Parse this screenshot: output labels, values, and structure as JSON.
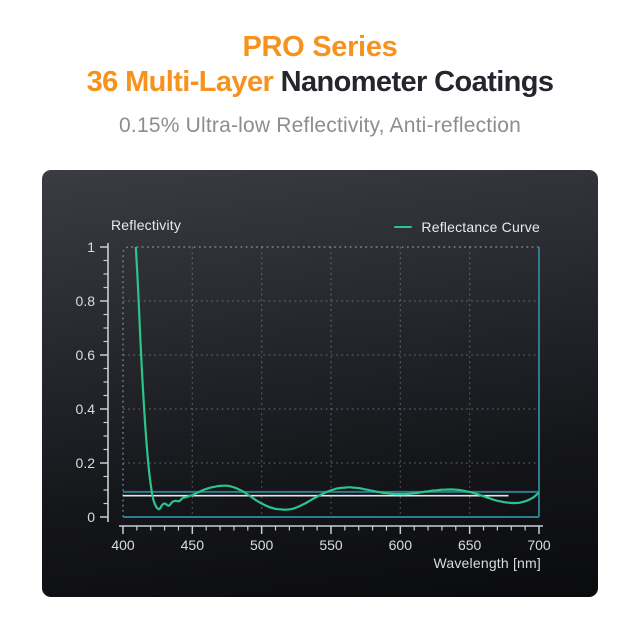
{
  "page": {
    "background": "#FFFFFF"
  },
  "header": {
    "line1": "PRO Series",
    "line2_highlight": "36 Multi-Layer",
    "line2_rest": " Nanometer Coatings",
    "subtitle": "0.15% Ultra-low Reflectivity, Anti-reflection",
    "accent_color": "#F6921E",
    "title_color": "#24252D",
    "subtitle_color": "#8D8D8D"
  },
  "chart_data": {
    "type": "line",
    "title": "Reflectivity",
    "legend_label": "Reflectance Curve",
    "legend_position": "top-right",
    "xlabel": "Wavelength [nm]",
    "ylabel": "Reflectivity",
    "xlim": [
      400,
      700
    ],
    "ylim": [
      0,
      1
    ],
    "x_ticks": [
      400,
      450,
      500,
      550,
      600,
      650,
      700
    ],
    "y_ticks": [
      0,
      0.2,
      0.4,
      0.6,
      0.8,
      1
    ],
    "x_minor_step": 10,
    "y_minor_step": 0.05,
    "grid": "dotted",
    "panel_colors": {
      "top": "#3A3C42",
      "bottom": "#0A0B0E"
    },
    "colors": {
      "curve": "#2AC58B",
      "reference_teal": "#2E7A8F",
      "reference_white": "#E4E6E7",
      "axis": "#C9CDD1",
      "tick_text": "#D9DCDE",
      "grid_dots": "rgba(195,200,205,0.38)",
      "border_dots": "rgba(125,168,182,0.75)"
    },
    "reference_lines": [
      {
        "name": "upper-teal-line",
        "y": 0.093,
        "x_from": 400,
        "x_to": 700,
        "color_key": "reference_teal",
        "width": 2
      },
      {
        "name": "white-mean-line",
        "y": 0.079,
        "x_from": 400,
        "x_to": 678,
        "color_key": "reference_white",
        "width": 1.6
      }
    ],
    "series": [
      {
        "name": "Reflectance Curve",
        "color": "#2AC58B",
        "points": [
          [
            409,
            1.02
          ],
          [
            410,
            0.93
          ],
          [
            411,
            0.83
          ],
          [
            412,
            0.72
          ],
          [
            413,
            0.61
          ],
          [
            414,
            0.51
          ],
          [
            415,
            0.42
          ],
          [
            416,
            0.34
          ],
          [
            417,
            0.27
          ],
          [
            418,
            0.21
          ],
          [
            419,
            0.16
          ],
          [
            420,
            0.12
          ],
          [
            421,
            0.085
          ],
          [
            422,
            0.062
          ],
          [
            423,
            0.047
          ],
          [
            424,
            0.037
          ],
          [
            425,
            0.031
          ],
          [
            426,
            0.029
          ],
          [
            427,
            0.033
          ],
          [
            428,
            0.043
          ],
          [
            429,
            0.048
          ],
          [
            430,
            0.05
          ],
          [
            431,
            0.048
          ],
          [
            432,
            0.043
          ],
          [
            433,
            0.041
          ],
          [
            434,
            0.046
          ],
          [
            435,
            0.053
          ],
          [
            436,
            0.057
          ],
          [
            437,
            0.059
          ],
          [
            438,
            0.06
          ],
          [
            439,
            0.059
          ],
          [
            440,
            0.058
          ],
          [
            441,
            0.06
          ],
          [
            442,
            0.065
          ],
          [
            443,
            0.07
          ],
          [
            444,
            0.072
          ],
          [
            445,
            0.073
          ],
          [
            446,
            0.074
          ],
          [
            447,
            0.076
          ],
          [
            448,
            0.078
          ],
          [
            450,
            0.081
          ],
          [
            452,
            0.086
          ],
          [
            454,
            0.091
          ],
          [
            456,
            0.096
          ],
          [
            458,
            0.1
          ],
          [
            460,
            0.104
          ],
          [
            462,
            0.107
          ],
          [
            464,
            0.11
          ],
          [
            466,
            0.112
          ],
          [
            468,
            0.114
          ],
          [
            470,
            0.115
          ],
          [
            472,
            0.116
          ],
          [
            474,
            0.116
          ],
          [
            476,
            0.115
          ],
          [
            478,
            0.113
          ],
          [
            480,
            0.11
          ],
          [
            482,
            0.106
          ],
          [
            484,
            0.101
          ],
          [
            486,
            0.096
          ],
          [
            488,
            0.09
          ],
          [
            490,
            0.083
          ],
          [
            492,
            0.076
          ],
          [
            494,
            0.069
          ],
          [
            496,
            0.062
          ],
          [
            498,
            0.056
          ],
          [
            500,
            0.05
          ],
          [
            502,
            0.045
          ],
          [
            504,
            0.04
          ],
          [
            506,
            0.036
          ],
          [
            508,
            0.033
          ],
          [
            510,
            0.03
          ],
          [
            512,
            0.029
          ],
          [
            514,
            0.028
          ],
          [
            516,
            0.027
          ],
          [
            518,
            0.027
          ],
          [
            520,
            0.028
          ],
          [
            522,
            0.03
          ],
          [
            524,
            0.033
          ],
          [
            526,
            0.037
          ],
          [
            528,
            0.042
          ],
          [
            530,
            0.047
          ],
          [
            532,
            0.052
          ],
          [
            534,
            0.058
          ],
          [
            536,
            0.064
          ],
          [
            538,
            0.07
          ],
          [
            540,
            0.075
          ],
          [
            542,
            0.081
          ],
          [
            544,
            0.086
          ],
          [
            546,
            0.091
          ],
          [
            548,
            0.095
          ],
          [
            550,
            0.099
          ],
          [
            552,
            0.102
          ],
          [
            554,
            0.105
          ],
          [
            556,
            0.107
          ],
          [
            558,
            0.108
          ],
          [
            560,
            0.109
          ],
          [
            562,
            0.11
          ],
          [
            564,
            0.11
          ],
          [
            566,
            0.109
          ],
          [
            568,
            0.108
          ],
          [
            570,
            0.107
          ],
          [
            572,
            0.105
          ],
          [
            574,
            0.103
          ],
          [
            576,
            0.101
          ],
          [
            578,
            0.099
          ],
          [
            580,
            0.097
          ],
          [
            582,
            0.095
          ],
          [
            584,
            0.093
          ],
          [
            586,
            0.091
          ],
          [
            588,
            0.089
          ],
          [
            590,
            0.088
          ],
          [
            592,
            0.087
          ],
          [
            594,
            0.086
          ],
          [
            596,
            0.085
          ],
          [
            598,
            0.085
          ],
          [
            600,
            0.085
          ],
          [
            602,
            0.085
          ],
          [
            604,
            0.085
          ],
          [
            606,
            0.086
          ],
          [
            608,
            0.087
          ],
          [
            610,
            0.088
          ],
          [
            612,
            0.089
          ],
          [
            614,
            0.091
          ],
          [
            616,
            0.092
          ],
          [
            618,
            0.094
          ],
          [
            620,
            0.095
          ],
          [
            622,
            0.097
          ],
          [
            624,
            0.098
          ],
          [
            626,
            0.099
          ],
          [
            628,
            0.1
          ],
          [
            630,
            0.101
          ],
          [
            632,
            0.101
          ],
          [
            634,
            0.102
          ],
          [
            636,
            0.102
          ],
          [
            638,
            0.102
          ],
          [
            640,
            0.101
          ],
          [
            642,
            0.1
          ],
          [
            644,
            0.099
          ],
          [
            646,
            0.097
          ],
          [
            648,
            0.095
          ],
          [
            650,
            0.093
          ],
          [
            652,
            0.09
          ],
          [
            654,
            0.087
          ],
          [
            656,
            0.084
          ],
          [
            658,
            0.08
          ],
          [
            660,
            0.077
          ],
          [
            662,
            0.073
          ],
          [
            664,
            0.07
          ],
          [
            666,
            0.066
          ],
          [
            668,
            0.063
          ],
          [
            670,
            0.06
          ],
          [
            672,
            0.058
          ],
          [
            674,
            0.056
          ],
          [
            676,
            0.054
          ],
          [
            678,
            0.053
          ],
          [
            680,
            0.052
          ],
          [
            682,
            0.052
          ],
          [
            684,
            0.052
          ],
          [
            686,
            0.053
          ],
          [
            688,
            0.055
          ],
          [
            690,
            0.058
          ],
          [
            692,
            0.062
          ],
          [
            694,
            0.067
          ],
          [
            696,
            0.073
          ],
          [
            698,
            0.081
          ],
          [
            700,
            0.09
          ]
        ]
      }
    ]
  }
}
